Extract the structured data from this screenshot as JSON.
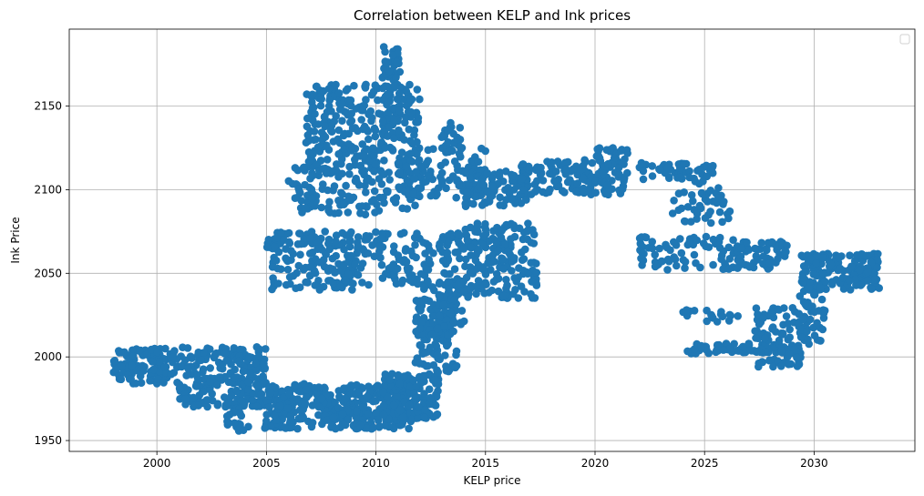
{
  "chart_data": {
    "type": "scatter",
    "title": "Correlation between KELP and Ink prices",
    "xlabel": "KELP price",
    "ylabel": "Ink Price",
    "xlim": [
      1996.0,
      2034.6
    ],
    "ylim": [
      1943.5,
      2196.0
    ],
    "xticks": [
      2000,
      2005,
      2010,
      2015,
      2020,
      2025,
      2030
    ],
    "yticks": [
      1950,
      2000,
      2050,
      2100,
      2150
    ],
    "grid": true,
    "legend": "top-right, empty",
    "marker_color": "#1f77b4",
    "clusters": [
      {
        "x": [
          1998,
          2001
        ],
        "y": [
          1984,
          2005
        ],
        "n": 120
      },
      {
        "x": [
          2001,
          2005
        ],
        "y": [
          1970,
          2006
        ],
        "n": 230
      },
      {
        "x": [
          2003.2,
          2004.3
        ],
        "y": [
          1955,
          1975
        ],
        "n": 25
      },
      {
        "x": [
          2004.9,
          2011.6
        ],
        "y": [
          1957,
          1984
        ],
        "n": 380
      },
      {
        "x": [
          2010.3,
          2012.9
        ],
        "y": [
          1963,
          1990
        ],
        "n": 150
      },
      {
        "x": [
          2011.8,
          2013.7
        ],
        "y": [
          1990,
          2040
        ],
        "n": 120
      },
      {
        "x": [
          2012.8,
          2014.1
        ],
        "y": [
          2015,
          2045
        ],
        "n": 60
      },
      {
        "x": [
          2005.0,
          2009.0
        ],
        "y": [
          2040,
          2075
        ],
        "n": 160
      },
      {
        "x": [
          2009.0,
          2014.0
        ],
        "y": [
          2040,
          2075
        ],
        "n": 150
      },
      {
        "x": [
          2014.0,
          2017.4
        ],
        "y": [
          2035,
          2080
        ],
        "n": 170
      },
      {
        "x": [
          2006.0,
          2011.8
        ],
        "y": [
          2085,
          2115
        ],
        "n": 140
      },
      {
        "x": [
          2006.8,
          2012.0
        ],
        "y": [
          2115,
          2163
        ],
        "n": 260
      },
      {
        "x": [
          2010.3,
          2011.1
        ],
        "y": [
          2130,
          2187
        ],
        "n": 70
      },
      {
        "x": [
          2011.0,
          2015.0
        ],
        "y": [
          2095,
          2125
        ],
        "n": 110
      },
      {
        "x": [
          2013.0,
          2014.0
        ],
        "y": [
          2122,
          2141
        ],
        "n": 25
      },
      {
        "x": [
          2014.0,
          2017.0
        ],
        "y": [
          2090,
          2112
        ],
        "n": 90
      },
      {
        "x": [
          2016.5,
          2020.0
        ],
        "y": [
          2097,
          2118
        ],
        "n": 90
      },
      {
        "x": [
          2020.0,
          2021.5
        ],
        "y": [
          2097,
          2125
        ],
        "n": 70
      },
      {
        "x": [
          2022.0,
          2025.5
        ],
        "y": [
          2106,
          2116
        ],
        "n": 50
      },
      {
        "x": [
          2023.5,
          2026.2
        ],
        "y": [
          2080,
          2105
        ],
        "n": 45
      },
      {
        "x": [
          2022.0,
          2027.0
        ],
        "y": [
          2052,
          2072
        ],
        "n": 80
      },
      {
        "x": [
          2026.5,
          2028.8
        ],
        "y": [
          2052,
          2070
        ],
        "n": 55
      },
      {
        "x": [
          2024.2,
          2029.4
        ],
        "y": [
          2002,
          2008
        ],
        "n": 80
      },
      {
        "x": [
          2024.0,
          2028.0
        ],
        "y": [
          2021,
          2028
        ],
        "n": 18
      },
      {
        "x": [
          2027.3,
          2029.6
        ],
        "y": [
          2009,
          2030
        ],
        "n": 50
      },
      {
        "x": [
          2029.3,
          2030.5
        ],
        "y": [
          2007,
          2050
        ],
        "n": 50
      },
      {
        "x": [
          2029.4,
          2033.0
        ],
        "y": [
          2040,
          2062
        ],
        "n": 160
      },
      {
        "x": [
          2027.2,
          2029.4
        ],
        "y": [
          1994,
          2005
        ],
        "n": 30
      }
    ]
  },
  "legend": {}
}
